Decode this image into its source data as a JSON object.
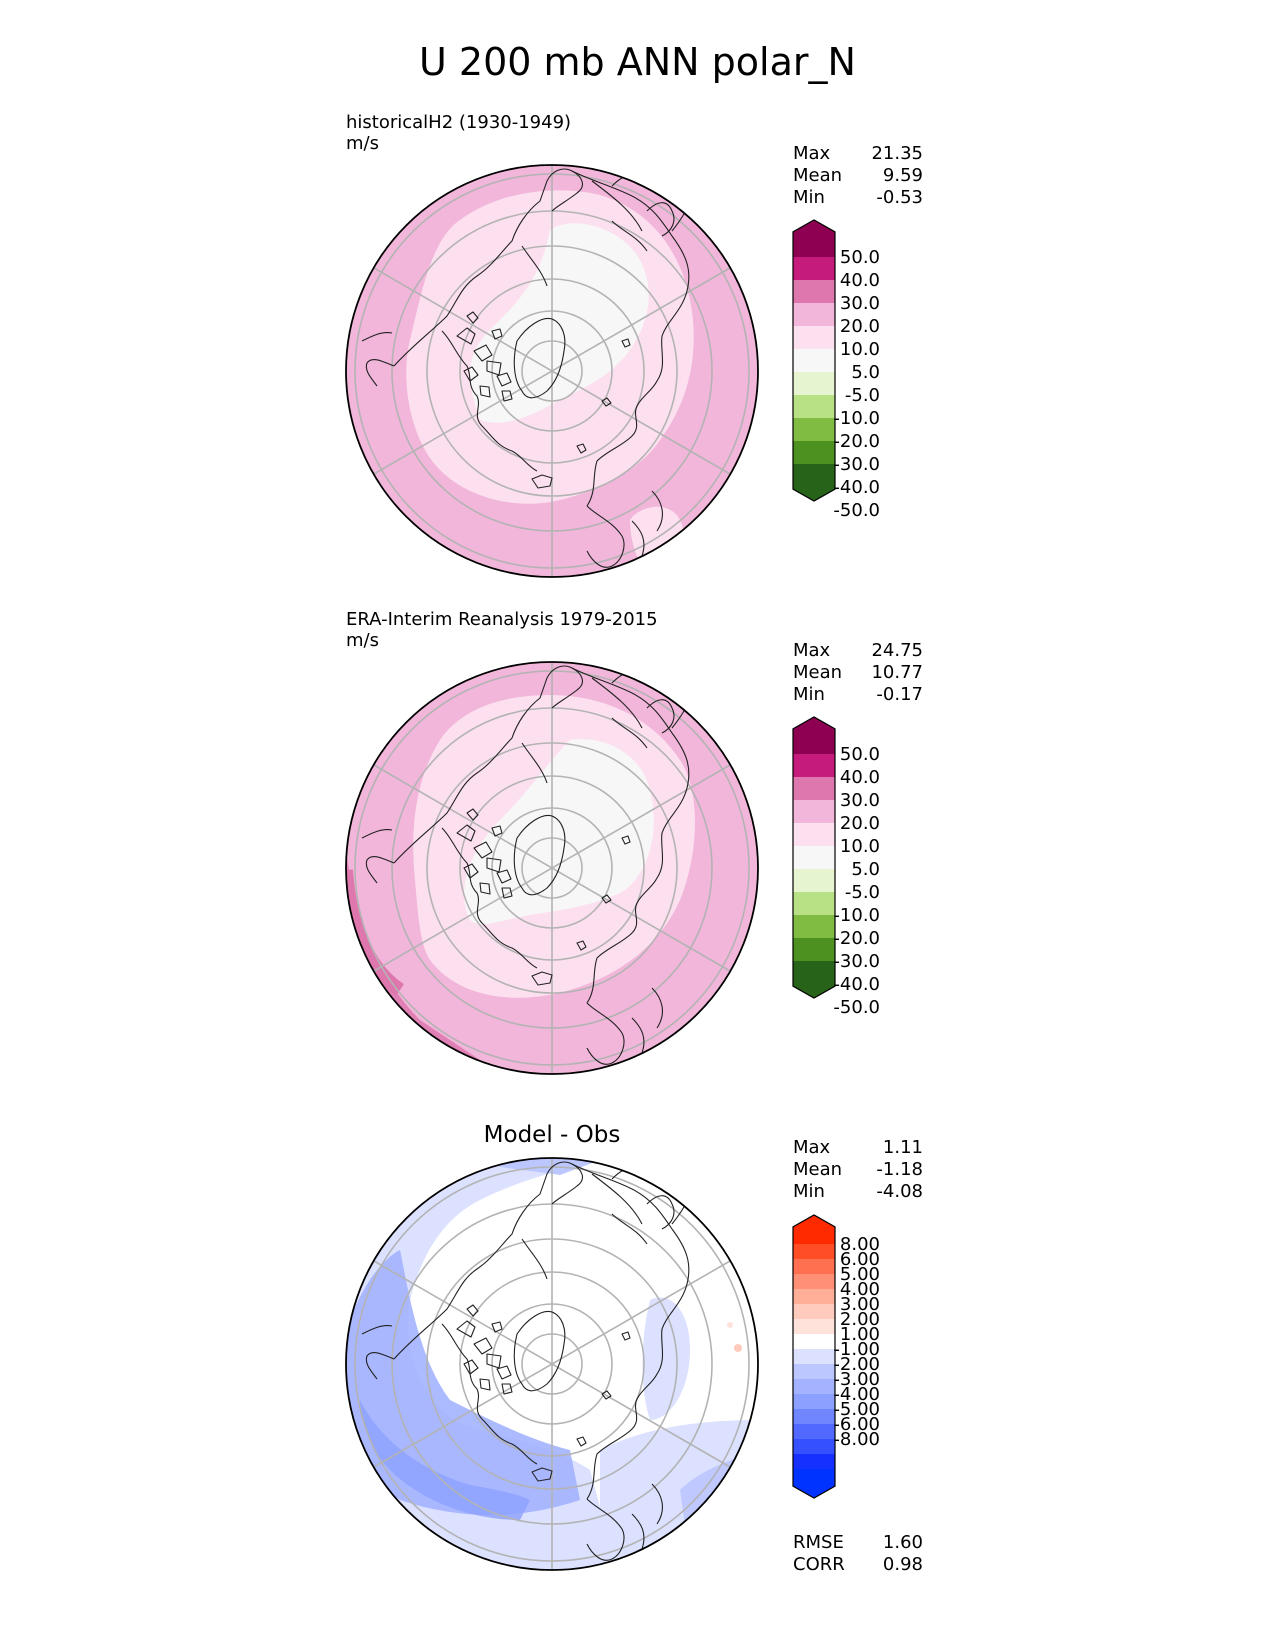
{
  "title": "U 200 mb ANN polar_N",
  "panels": [
    {
      "test_name": "historicalH2 (1930-1949)",
      "units": "m/s",
      "stats": [
        {
          "label": "Max",
          "value": "21.35"
        },
        {
          "label": "Mean",
          "value": "9.59"
        },
        {
          "label": "Min",
          "value": "-0.53"
        }
      ]
    },
    {
      "test_name": "ERA-Interim Reanalysis 1979-2015",
      "units": "m/s",
      "stats": [
        {
          "label": "Max",
          "value": "24.75"
        },
        {
          "label": "Mean",
          "value": "10.77"
        },
        {
          "label": "Min",
          "value": "-0.17"
        }
      ]
    },
    {
      "title": "Model - Obs",
      "stats": [
        {
          "label": "Max",
          "value": "1.11"
        },
        {
          "label": "Mean",
          "value": "-1.18"
        },
        {
          "label": "Min",
          "value": "-4.08"
        }
      ],
      "metrics": [
        {
          "label": "RMSE",
          "value": "1.60"
        },
        {
          "label": "CORR",
          "value": "0.98"
        }
      ]
    }
  ],
  "colorbars": {
    "field": {
      "colors": [
        "#8e0152",
        "#c51b7d",
        "#de77ae",
        "#f1b6da",
        "#fde0ef",
        "#f7f7f7",
        "#e6f5d0",
        "#b8e186",
        "#7fbc41",
        "#4d9221",
        "#276419"
      ],
      "labels": [
        "50.0",
        "40.0",
        "30.0",
        "20.0",
        "10.0",
        "5.0",
        "-5.0",
        "-10.0",
        "-20.0",
        "-30.0",
        "-40.0",
        "-50.0"
      ]
    },
    "diff": {
      "colors": [
        "#ff2a00",
        "#ff4d26",
        "#ff7050",
        "#ff8f75",
        "#ffae98",
        "#ffcbbc",
        "#ffe3db",
        "#ffffff",
        "#dbe1ff",
        "#bcc7ff",
        "#a3b3ff",
        "#8ca0ff",
        "#6f86ff",
        "#5269ff",
        "#3450ff",
        "#1530ff",
        "#0033ff"
      ],
      "labels": [
        "8.00",
        "6.00",
        "5.00",
        "4.00",
        "3.00",
        "2.00",
        "1.00",
        "-1.00",
        "-2.00",
        "-3.00",
        "-4.00",
        "-5.00",
        "-6.00",
        "-8.00"
      ]
    }
  },
  "chart_data": [
    {
      "type": "heatmap",
      "projection": "north polar stereographic",
      "title": "historicalH2 (1930-1949)",
      "units": "m/s",
      "max": 21.35,
      "mean": 9.59,
      "min": -0.53,
      "levels": [
        -50,
        -40,
        -30,
        -20,
        -10,
        -5,
        5,
        10,
        20,
        30,
        40,
        50
      ]
    },
    {
      "type": "heatmap",
      "projection": "north polar stereographic",
      "title": "ERA-Interim Reanalysis 1979-2015",
      "units": "m/s",
      "max": 24.75,
      "mean": 10.77,
      "min": -0.17,
      "levels": [
        -50,
        -40,
        -30,
        -20,
        -10,
        -5,
        5,
        10,
        20,
        30,
        40,
        50
      ]
    },
    {
      "type": "heatmap",
      "projection": "north polar stereographic",
      "title": "Model - Obs",
      "max": 1.11,
      "mean": -1.18,
      "min": -4.08,
      "rmse": 1.6,
      "corr": 0.98,
      "levels": [
        -8,
        -6,
        -5,
        -4,
        -3,
        -2,
        -1,
        1,
        2,
        3,
        4,
        5,
        6,
        8
      ]
    }
  ]
}
